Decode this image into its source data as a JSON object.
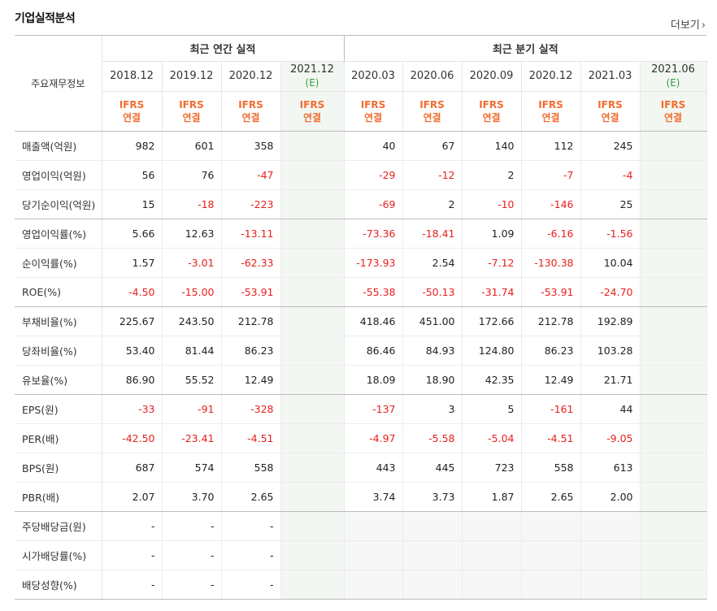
{
  "title": "기업실적분석",
  "more_label": "더보기",
  "header": {
    "row_label": "주요재무정보",
    "annual_group": "최근 연간 실적",
    "quarter_group": "최근 분기 실적",
    "periods": [
      {
        "label": "2018.12",
        "est": ""
      },
      {
        "label": "2019.12",
        "est": ""
      },
      {
        "label": "2020.12",
        "est": ""
      },
      {
        "label": "2021.12",
        "est": "(E)"
      },
      {
        "label": "2020.03",
        "est": ""
      },
      {
        "label": "2020.06",
        "est": ""
      },
      {
        "label": "2020.09",
        "est": ""
      },
      {
        "label": "2020.12",
        "est": ""
      },
      {
        "label": "2021.03",
        "est": ""
      },
      {
        "label": "2021.06",
        "est": "(E)"
      }
    ],
    "ifrs_line1": "IFRS",
    "ifrs_line2": "연결"
  },
  "rows": [
    {
      "label": "매출액(억원)",
      "values": [
        "982",
        "601",
        "358",
        "",
        "40",
        "67",
        "140",
        "112",
        "245",
        ""
      ]
    },
    {
      "label": "영업이익(억원)",
      "values": [
        "56",
        "76",
        "-47",
        "",
        "-29",
        "-12",
        "2",
        "-7",
        "-4",
        ""
      ]
    },
    {
      "label": "당기순이익(억원)",
      "values": [
        "15",
        "-18",
        "-223",
        "",
        "-69",
        "2",
        "-10",
        "-146",
        "25",
        ""
      ]
    },
    {
      "label": "영업이익률(%)",
      "values": [
        "5.66",
        "12.63",
        "-13.11",
        "",
        "-73.36",
        "-18.41",
        "1.09",
        "-6.16",
        "-1.56",
        ""
      ]
    },
    {
      "label": "순이익률(%)",
      "values": [
        "1.57",
        "-3.01",
        "-62.33",
        "",
        "-173.93",
        "2.54",
        "-7.12",
        "-130.38",
        "10.04",
        ""
      ]
    },
    {
      "label": "ROE(%)",
      "values": [
        "-4.50",
        "-15.00",
        "-53.91",
        "",
        "-55.38",
        "-50.13",
        "-31.74",
        "-53.91",
        "-24.70",
        ""
      ]
    },
    {
      "label": "부채비율(%)",
      "values": [
        "225.67",
        "243.50",
        "212.78",
        "",
        "418.46",
        "451.00",
        "172.66",
        "212.78",
        "192.89",
        ""
      ]
    },
    {
      "label": "당좌비율(%)",
      "values": [
        "53.40",
        "81.44",
        "86.23",
        "",
        "86.46",
        "84.93",
        "124.80",
        "86.23",
        "103.28",
        ""
      ]
    },
    {
      "label": "유보율(%)",
      "values": [
        "86.90",
        "55.52",
        "12.49",
        "",
        "18.09",
        "18.90",
        "42.35",
        "12.49",
        "21.71",
        ""
      ]
    },
    {
      "label": "EPS(원)",
      "values": [
        "-33",
        "-91",
        "-328",
        "",
        "-137",
        "3",
        "5",
        "-161",
        "44",
        ""
      ]
    },
    {
      "label": "PER(배)",
      "values": [
        "-42.50",
        "-23.41",
        "-4.51",
        "",
        "-4.97",
        "-5.58",
        "-5.04",
        "-4.51",
        "-9.05",
        ""
      ]
    },
    {
      "label": "BPS(원)",
      "values": [
        "687",
        "574",
        "558",
        "",
        "443",
        "445",
        "723",
        "558",
        "613",
        ""
      ]
    },
    {
      "label": "PBR(배)",
      "values": [
        "2.07",
        "3.70",
        "2.65",
        "",
        "3.74",
        "3.73",
        "1.87",
        "2.65",
        "2.00",
        ""
      ]
    },
    {
      "label": "주당배당금(원)",
      "values": [
        "-",
        "-",
        "-",
        "",
        "",
        "",
        "",
        "",
        "",
        ""
      ]
    },
    {
      "label": "시가배당률(%)",
      "values": [
        "-",
        "-",
        "-",
        "",
        "",
        "",
        "",
        "",
        "",
        ""
      ]
    },
    {
      "label": "배당성향(%)",
      "values": [
        "-",
        "-",
        "-",
        "",
        "",
        "",
        "",
        "",
        "",
        ""
      ]
    }
  ],
  "colors": {
    "negative": "#e8201e",
    "ifrs": "#f26c2f",
    "estimate": "#3b9a3b"
  }
}
